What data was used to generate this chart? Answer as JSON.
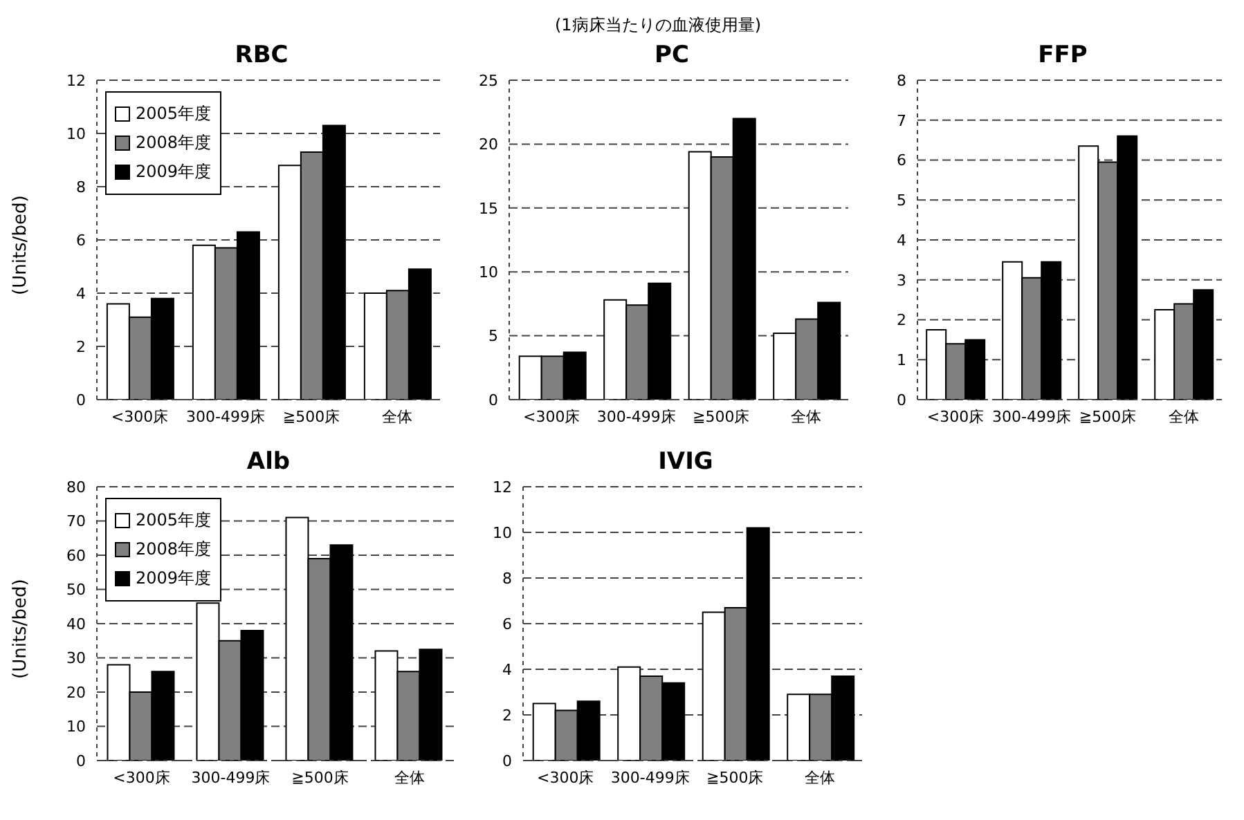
{
  "chart_data": [
    {
      "type": "bar",
      "title": "RBC",
      "ylabel": "(Units/bed)",
      "categories": [
        "<300床",
        "300-499床",
        "≧500床",
        "全体"
      ],
      "series": [
        {
          "name": "2005年度",
          "color": "#ffffff",
          "values": [
            3.6,
            5.8,
            8.8,
            4.0
          ]
        },
        {
          "name": "2008年度",
          "color": "#808080",
          "values": [
            3.1,
            5.7,
            9.3,
            4.1
          ]
        },
        {
          "name": "2009年度",
          "color": "#000000",
          "values": [
            3.8,
            6.3,
            10.3,
            4.9
          ]
        }
      ],
      "ylim": [
        0,
        12
      ],
      "yticks": [
        0,
        2,
        4,
        6,
        8,
        10,
        12
      ],
      "grid": "y",
      "legend": "top left"
    },
    {
      "type": "bar",
      "title": "PC",
      "subtitle": "(1病床当たりの血液使用量)",
      "categories": [
        "<300床",
        "300-499床",
        "≧500床",
        "全体"
      ],
      "series": [
        {
          "color": "#ffffff",
          "values": [
            3.4,
            7.8,
            19.4,
            5.2
          ]
        },
        {
          "color": "#808080",
          "values": [
            3.4,
            7.4,
            19.0,
            6.3
          ]
        },
        {
          "color": "#000000",
          "values": [
            3.7,
            9.1,
            22.0,
            7.6
          ]
        }
      ],
      "ylim": [
        0,
        25
      ],
      "yticks": [
        0,
        5,
        10,
        15,
        20,
        25
      ],
      "grid": "y"
    },
    {
      "type": "bar",
      "title": "FFP",
      "categories": [
        "<300床",
        "300-499床",
        "≧500床",
        "全体"
      ],
      "series": [
        {
          "color": "#ffffff",
          "values": [
            1.75,
            3.45,
            6.35,
            2.25
          ]
        },
        {
          "color": "#808080",
          "values": [
            1.4,
            3.05,
            5.95,
            2.4
          ]
        },
        {
          "color": "#000000",
          "values": [
            1.5,
            3.45,
            6.6,
            2.75
          ]
        }
      ],
      "ylim": [
        0,
        8
      ],
      "yticks": [
        0,
        1,
        2,
        3,
        4,
        5,
        6,
        7,
        8
      ],
      "grid": "y"
    },
    {
      "type": "bar",
      "title": "Alb",
      "ylabel": "(Units/bed)",
      "categories": [
        "<300床",
        "300-499床",
        "≧500床",
        "全体"
      ],
      "series": [
        {
          "name": "2005年度",
          "color": "#ffffff",
          "values": [
            28,
            46,
            71,
            32
          ]
        },
        {
          "name": "2008年度",
          "color": "#808080",
          "values": [
            20,
            35,
            59,
            26
          ]
        },
        {
          "name": "2009年度",
          "color": "#000000",
          "values": [
            26,
            38,
            63,
            32.5
          ]
        }
      ],
      "ylim": [
        0,
        80
      ],
      "yticks": [
        0,
        10,
        20,
        30,
        40,
        50,
        60,
        70,
        80
      ],
      "grid": "y",
      "legend": "top left"
    },
    {
      "type": "bar",
      "title": "IVIG",
      "categories": [
        "<300床",
        "300-499床",
        "≧500床",
        "全体"
      ],
      "series": [
        {
          "color": "#ffffff",
          "values": [
            2.5,
            4.1,
            6.5,
            2.9
          ]
        },
        {
          "color": "#808080",
          "values": [
            2.2,
            3.7,
            6.7,
            2.9
          ]
        },
        {
          "color": "#000000",
          "values": [
            2.6,
            3.4,
            10.2,
            3.7
          ]
        }
      ],
      "ylim": [
        0,
        12
      ],
      "yticks": [
        0,
        2,
        4,
        6,
        8,
        10,
        12
      ],
      "grid": "y"
    }
  ]
}
